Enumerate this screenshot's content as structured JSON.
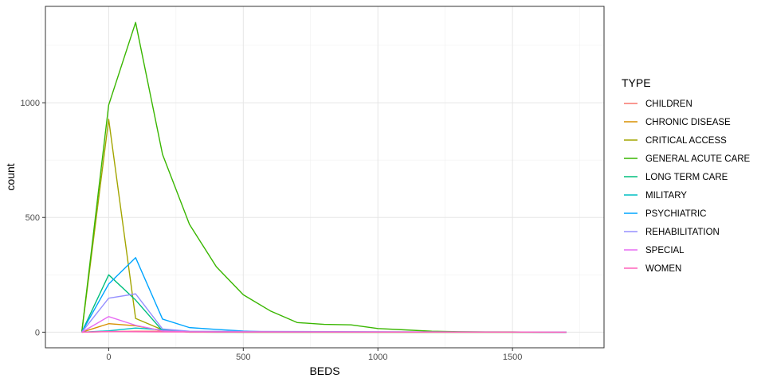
{
  "chart_data": {
    "type": "line",
    "xlabel": "BEDS",
    "ylabel": "count",
    "xlim": [
      -235,
      1840
    ],
    "ylim": [
      -68,
      1420
    ],
    "x_ticks": [
      0,
      500,
      1000,
      1500
    ],
    "x_tick_labels": [
      "0",
      "500",
      "1000",
      "1500"
    ],
    "x_minor_ticks": [
      -250,
      250,
      750,
      1250,
      1750
    ],
    "y_ticks": [
      0,
      500,
      1000
    ],
    "y_tick_labels": [
      "0",
      "500",
      "1000"
    ],
    "y_minor_ticks": [
      250,
      750,
      1250
    ],
    "grid": true,
    "legend": {
      "title": "TYPE",
      "position": "right"
    },
    "series": [
      {
        "name": "CHILDREN",
        "color": "#F8766D",
        "x": [
          -100,
          0,
          100,
          200,
          300,
          400,
          500,
          1700
        ],
        "y": [
          0,
          3,
          4,
          4,
          2,
          1,
          1,
          0
        ]
      },
      {
        "name": "CHRONIC DISEASE",
        "color": "#D89000",
        "x": [
          -100,
          0,
          100,
          200,
          300,
          500,
          1700
        ],
        "y": [
          0,
          37,
          28,
          6,
          2,
          0,
          0
        ]
      },
      {
        "name": "CRITICAL ACCESS",
        "color": "#A3A500",
        "x": [
          -100,
          0,
          100,
          200,
          300,
          1700
        ],
        "y": [
          0,
          928,
          60,
          10,
          0,
          0
        ]
      },
      {
        "name": "GENERAL ACUTE CARE",
        "color": "#39B600",
        "x": [
          -100,
          0,
          100,
          200,
          300,
          400,
          500,
          600,
          700,
          800,
          900,
          1000,
          1100,
          1200,
          1300,
          1400,
          1500,
          1600,
          1700
        ],
        "y": [
          0,
          990,
          1350,
          775,
          470,
          285,
          163,
          93,
          42,
          34,
          32,
          16,
          10,
          4,
          2,
          1,
          1,
          0,
          0
        ]
      },
      {
        "name": "LONG TERM CARE",
        "color": "#00BF7D",
        "x": [
          -100,
          0,
          100,
          200,
          300,
          400,
          1700
        ],
        "y": [
          0,
          250,
          140,
          6,
          1,
          0,
          0
        ]
      },
      {
        "name": "MILITARY",
        "color": "#00BFC4",
        "x": [
          -100,
          0,
          100,
          200,
          300,
          1700
        ],
        "y": [
          0,
          6,
          18,
          10,
          2,
          0
        ]
      },
      {
        "name": "PSYCHIATRIC",
        "color": "#00A5FF",
        "x": [
          -100,
          0,
          100,
          200,
          300,
          400,
          500,
          600,
          1700
        ],
        "y": [
          0,
          210,
          325,
          57,
          20,
          12,
          5,
          1,
          0
        ]
      },
      {
        "name": "REHABILITATION",
        "color": "#9590FF",
        "x": [
          -100,
          0,
          100,
          200,
          300,
          1700
        ],
        "y": [
          0,
          148,
          167,
          14,
          4,
          0
        ]
      },
      {
        "name": "SPECIAL",
        "color": "#E76BF3",
        "x": [
          -100,
          0,
          100,
          200,
          300,
          1700
        ],
        "y": [
          0,
          68,
          30,
          6,
          1,
          0
        ]
      },
      {
        "name": "WOMEN",
        "color": "#FF62BC",
        "x": [
          -100,
          0,
          100,
          200,
          1700
        ],
        "y": [
          0,
          3,
          2,
          1,
          0
        ]
      }
    ]
  }
}
